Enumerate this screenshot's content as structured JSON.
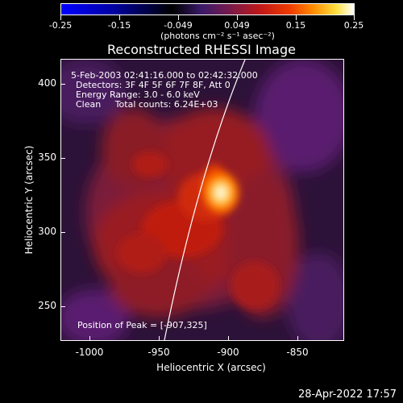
{
  "colorbar": {
    "tick_labels": [
      "-0.25",
      "-0.15",
      "-0.049",
      "0.049",
      "0.15",
      "0.25"
    ],
    "units": "(photons cm⁻² s⁻¹ asec⁻²)",
    "colors": [
      "#0000ff",
      "#000000",
      "#c01818",
      "#ff8a00",
      "#ffffff"
    ]
  },
  "title": "Reconstructed RHESSI Image",
  "info": {
    "time_range": "5-Feb-2003 02:41:16.000 to 02:42:32.000",
    "detectors": "Detectors: 3F 4F 5F 6F 7F 8F, Att 0",
    "energy": "Energy Range: 3.0 - 6.0 keV",
    "method": "Clean     Total counts: 6.24E+03",
    "peak": "Position of Peak = [-907,325]"
  },
  "axes": {
    "xlabel": "Heliocentric X (arcsec)",
    "ylabel": "Heliocentric Y (arcsec)",
    "x_ticks": [
      "-1000",
      "-950",
      "-900",
      "-850"
    ],
    "y_ticks": [
      "400",
      "350",
      "300",
      "250"
    ],
    "xlim": [
      -1045,
      -825
    ],
    "ylim": [
      222,
      420
    ]
  },
  "chart_data": {
    "type": "heatmap",
    "title": "Reconstructed RHESSI Image",
    "xlabel": "Heliocentric X (arcsec)",
    "ylabel": "Heliocentric Y (arcsec)",
    "xlim": [
      -1045,
      -825
    ],
    "ylim": [
      222,
      420
    ],
    "value_range": [
      -0.25,
      0.25
    ],
    "peak": {
      "x": -907,
      "y": 325
    }
  },
  "datestamp": "28-Apr-2022 17:57"
}
